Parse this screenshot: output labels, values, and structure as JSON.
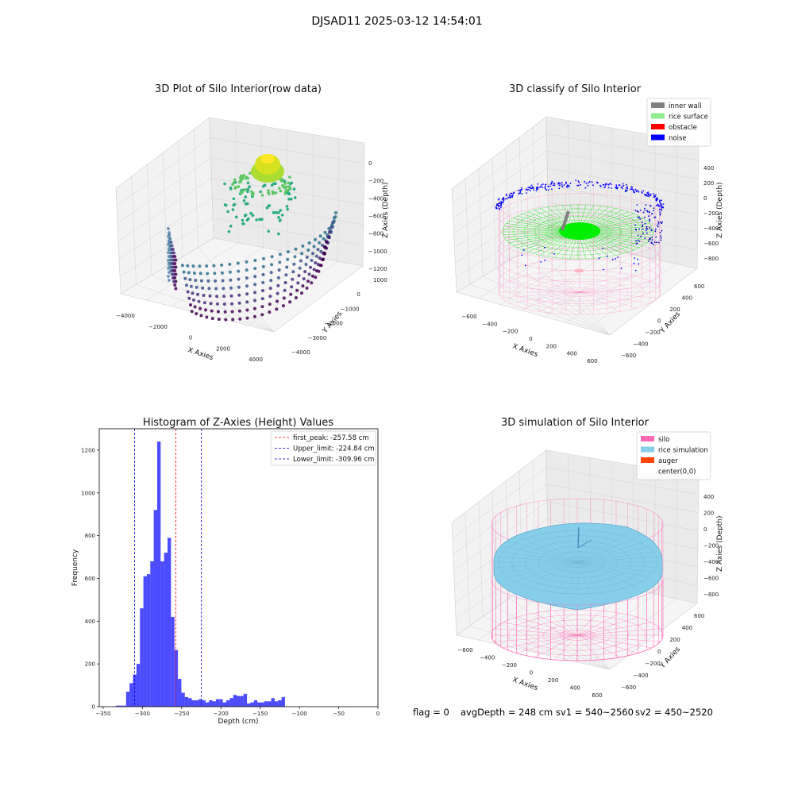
{
  "suptitle": "DJSAD11 2025-03-12 14:54:01",
  "status_line": {
    "flag": "flag = 0",
    "avg_depth": "avgDepth = 248 cm",
    "sv1": "sv1 = 540~2560",
    "sv2": "sv2 = 450~2520"
  },
  "chart_data": [
    {
      "type": "scatter",
      "title": "3D Plot of Silo Interior(row data)",
      "xlabel": "X Axies",
      "ylabel": "Y Axies",
      "zlabel": "Z Axies (Depth)",
      "x_ticks": [
        "−4000",
        "−2000",
        "0",
        "2000",
        "4000"
      ],
      "y_ticks": [
        "1000",
        "0",
        "−1000",
        "−2000",
        "−3000",
        "−4000"
      ],
      "z_ticks": [
        "0",
        "−200",
        "−400",
        "−600",
        "−800",
        "−1000",
        "−1200"
      ],
      "xlim": [
        -4500,
        4500
      ],
      "ylim": [
        -4500,
        1000
      ],
      "zlim": [
        -1300,
        0
      ],
      "colormap": "viridis",
      "grid": true
    },
    {
      "type": "scatter",
      "title": "3D classify of Silo Interior",
      "xlabel": "X Axies",
      "ylabel": "Y Axies",
      "zlabel": "Z Axies (Depth)",
      "x_ticks": [
        "−600",
        "−400",
        "−200",
        "0",
        "200",
        "400",
        "600"
      ],
      "y_ticks": [
        "600",
        "400",
        "200",
        "0",
        "−200",
        "−400",
        "−600"
      ],
      "z_ticks": [
        "400",
        "200",
        "0",
        "−200",
        "−400",
        "−600",
        "−800"
      ],
      "xlim": [
        -700,
        700
      ],
      "ylim": [
        -700,
        700
      ],
      "zlim": [
        -900,
        450
      ],
      "legend": [
        {
          "label": "inner wall",
          "color": "#808080"
        },
        {
          "label": "rice surface",
          "color": "#90ee90"
        },
        {
          "label": "obstacle",
          "color": "#ff0000"
        },
        {
          "label": "noise",
          "color": "#0000ff"
        }
      ],
      "legend_position": "top-right",
      "grid": true
    },
    {
      "type": "bar",
      "title": "Histogram of Z-Axies (Height) Values",
      "xlabel": "Depth (cm)",
      "ylabel": "Frequency",
      "xlim": [
        -355,
        0
      ],
      "ylim": [
        0,
        1300
      ],
      "x_ticks": [
        -350,
        -300,
        -250,
        -200,
        -150,
        -100,
        -50,
        0
      ],
      "x_tick_labels": [
        "−350",
        "−300",
        "−250",
        "−200",
        "−150",
        "−100",
        "−50",
        "0"
      ],
      "y_ticks": [
        0,
        200,
        400,
        600,
        800,
        1000,
        1200
      ],
      "bin_width": 4.4,
      "bin_start": -334,
      "values": [
        5,
        5,
        5,
        70,
        110,
        150,
        200,
        460,
        610,
        620,
        680,
        920,
        1240,
        680,
        720,
        790,
        420,
        265,
        130,
        65,
        45,
        40,
        30,
        30,
        35,
        30,
        20,
        30,
        25,
        35,
        35,
        20,
        30,
        40,
        55,
        50,
        50,
        60,
        15,
        20,
        30,
        20,
        20,
        25,
        25,
        40,
        25,
        30,
        45
      ],
      "color": "#0000ff",
      "lines": [
        {
          "label": "first_peak: -257.58 cm",
          "x": -257.58,
          "color": "#ff0000"
        },
        {
          "label": "Upper_limit: -224.84 cm",
          "x": -224.84,
          "color": "#0000cc"
        },
        {
          "label": "Lower_limit: -309.96 cm",
          "x": -309.96,
          "color": "#0000cc"
        }
      ],
      "legend_position": "top-right",
      "grid": false
    },
    {
      "type": "scatter",
      "title": "3D simulation of Silo Interior",
      "xlabel": "X Axies",
      "ylabel": "Y Axies",
      "zlabel": "Z Axies (Depth)",
      "x_ticks": [
        "−600",
        "−400",
        "−200",
        "0",
        "200",
        "400",
        "600"
      ],
      "y_ticks": [
        "600",
        "400",
        "200",
        "0",
        "−200",
        "−400",
        "−600"
      ],
      "z_ticks": [
        "400",
        "200",
        "0",
        "−200",
        "−400",
        "−600",
        "−800"
      ],
      "xlim": [
        -700,
        700
      ],
      "ylim": [
        -700,
        700
      ],
      "zlim": [
        -900,
        450
      ],
      "legend": [
        {
          "label": "silo",
          "color": "#ff69b4"
        },
        {
          "label": "rice simulation",
          "color": "#87ceeb"
        },
        {
          "label": "auger",
          "color": "#ff4500"
        },
        {
          "label": "center(0,0)",
          "color": "#ffffff"
        }
      ],
      "legend_position": "top-right",
      "grid": true
    }
  ]
}
